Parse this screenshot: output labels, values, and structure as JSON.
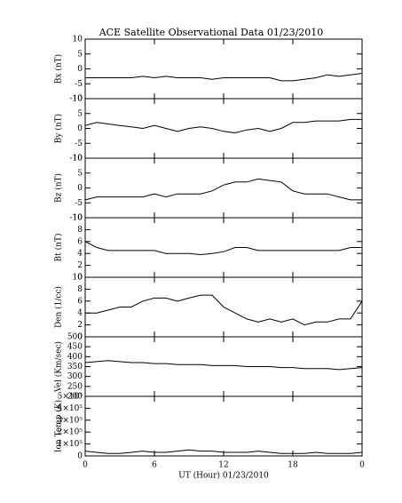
{
  "chart_data": [
    {
      "type": "line",
      "title": "ACE Satellite Observational Data   01/23/2010",
      "ylabel": "Bx (nT)",
      "xlim": [
        0,
        24
      ],
      "ylim": [
        -10,
        10
      ],
      "yticks": [
        10,
        5,
        0,
        -5,
        -10
      ],
      "x": [
        0,
        1,
        2,
        3,
        4,
        5,
        6,
        7,
        8,
        9,
        10,
        11,
        12,
        13,
        14,
        15,
        16,
        17,
        18,
        19,
        20,
        21,
        22,
        23,
        24
      ],
      "series": [
        {
          "color": "#000000",
          "values": [
            -3,
            -3,
            -3,
            -3,
            -3,
            -2.5,
            -3,
            -2.5,
            -3,
            -3,
            -3,
            -3.5,
            -3,
            -3,
            -3,
            -3,
            -3,
            -4,
            -4,
            -3.5,
            -3,
            -2,
            -2.5,
            -2,
            -1.5
          ]
        }
      ]
    },
    {
      "type": "line",
      "ylabel": "By (nT)",
      "xlim": [
        0,
        24
      ],
      "ylim": [
        -10,
        10
      ],
      "yticks": [
        10,
        5,
        0,
        -5,
        -10
      ],
      "x": [
        0,
        1,
        2,
        3,
        4,
        5,
        6,
        7,
        8,
        9,
        10,
        11,
        12,
        13,
        14,
        15,
        16,
        17,
        18,
        19,
        20,
        21,
        22,
        23,
        24
      ],
      "series": [
        {
          "color": "#000000",
          "values": [
            1,
            2,
            1.5,
            1,
            0.5,
            0,
            1,
            0,
            -1,
            0,
            0.5,
            0,
            -1,
            -1.5,
            -0.5,
            0,
            -1,
            0,
            2,
            2,
            2.5,
            2.5,
            2.5,
            3,
            3
          ]
        }
      ]
    },
    {
      "type": "line",
      "ylabel": "Bz (nT)",
      "xlim": [
        0,
        24
      ],
      "ylim": [
        -10,
        10
      ],
      "yticks": [
        10,
        5,
        0,
        -5,
        -10
      ],
      "x": [
        0,
        1,
        2,
        3,
        4,
        5,
        6,
        7,
        8,
        9,
        10,
        11,
        12,
        13,
        14,
        15,
        16,
        17,
        18,
        19,
        20,
        21,
        22,
        23,
        24
      ],
      "series": [
        {
          "color": "#000000",
          "values": [
            -4,
            -3,
            -3,
            -3,
            -3,
            -3,
            -2,
            -3,
            -2,
            -2,
            -2,
            -1,
            1,
            2,
            2,
            3,
            2.5,
            2,
            -1,
            -2,
            -2,
            -2,
            -3,
            -4,
            -4
          ]
        }
      ]
    },
    {
      "type": "line",
      "ylabel": "Bt (nT)",
      "xlim": [
        0,
        24
      ],
      "ylim": [
        0,
        10
      ],
      "yticks": [
        10,
        8,
        6,
        4,
        2,
        0
      ],
      "x": [
        0,
        1,
        2,
        3,
        4,
        5,
        6,
        7,
        8,
        9,
        10,
        11,
        12,
        13,
        14,
        15,
        16,
        17,
        18,
        19,
        20,
        21,
        22,
        23,
        24
      ],
      "series": [
        {
          "color": "#000000",
          "values": [
            6,
            5,
            4.5,
            4.5,
            4.5,
            4.5,
            4.5,
            4,
            4,
            4,
            3.8,
            4,
            4.3,
            5,
            5,
            4.5,
            4.5,
            4.5,
            4.5,
            4.5,
            4.5,
            4.5,
            4.5,
            5,
            5
          ]
        }
      ]
    },
    {
      "type": "line",
      "ylabel": "Den (1/cc)",
      "xlim": [
        0,
        24
      ],
      "ylim": [
        0,
        10
      ],
      "yticks": [
        10,
        8,
        6,
        4,
        2,
        0
      ],
      "x": [
        0,
        1,
        2,
        3,
        4,
        5,
        6,
        7,
        8,
        9,
        10,
        11,
        12,
        13,
        14,
        15,
        16,
        17,
        18,
        19,
        20,
        21,
        22,
        23,
        24
      ],
      "series": [
        {
          "color": "#000000",
          "values": [
            4,
            4,
            4.5,
            5,
            5,
            6,
            6.5,
            6.5,
            6,
            6.5,
            7,
            7,
            5,
            4,
            3,
            2.5,
            3,
            2.5,
            3,
            2,
            2.5,
            2.5,
            3,
            3,
            6
          ]
        }
      ]
    },
    {
      "type": "line",
      "ylabel": "Vel (Km/sec)",
      "xlim": [
        0,
        24
      ],
      "ylim": [
        200,
        500
      ],
      "yticks": [
        500,
        450,
        400,
        350,
        300,
        250,
        200
      ],
      "x": [
        0,
        1,
        2,
        3,
        4,
        5,
        6,
        7,
        8,
        9,
        10,
        11,
        12,
        13,
        14,
        15,
        16,
        17,
        18,
        19,
        20,
        21,
        22,
        23,
        24
      ],
      "series": [
        {
          "color": "#000000",
          "values": [
            370,
            375,
            380,
            375,
            370,
            370,
            365,
            365,
            360,
            360,
            360,
            355,
            355,
            355,
            350,
            350,
            350,
            345,
            345,
            340,
            340,
            340,
            335,
            340,
            345
          ]
        }
      ]
    },
    {
      "type": "line",
      "ylabel": "Ion Temp (K)",
      "xlabel": "UT (Hour)   01/23/2010",
      "xlim": [
        0,
        24
      ],
      "ylim": [
        0,
        500000
      ],
      "yticks": [
        {
          "value": 500000,
          "label": "5×10⁵"
        },
        {
          "value": 400000,
          "label": "4×10⁵"
        },
        {
          "value": 300000,
          "label": "3×10⁵"
        },
        {
          "value": 200000,
          "label": "2×10⁵"
        },
        {
          "value": 100000,
          "label": "1×10⁵"
        },
        0
      ],
      "xticks": [
        0,
        6,
        12,
        18,
        {
          "value": 24,
          "label": "0"
        }
      ],
      "x": [
        0,
        1,
        2,
        3,
        4,
        5,
        6,
        7,
        8,
        9,
        10,
        11,
        12,
        13,
        14,
        15,
        16,
        17,
        18,
        19,
        20,
        21,
        22,
        23,
        24
      ],
      "series": [
        {
          "color": "#000000",
          "values": [
            40000,
            30000,
            20000,
            20000,
            30000,
            40000,
            30000,
            30000,
            40000,
            50000,
            40000,
            40000,
            30000,
            30000,
            30000,
            40000,
            30000,
            20000,
            20000,
            20000,
            30000,
            20000,
            20000,
            20000,
            30000
          ]
        }
      ]
    }
  ]
}
